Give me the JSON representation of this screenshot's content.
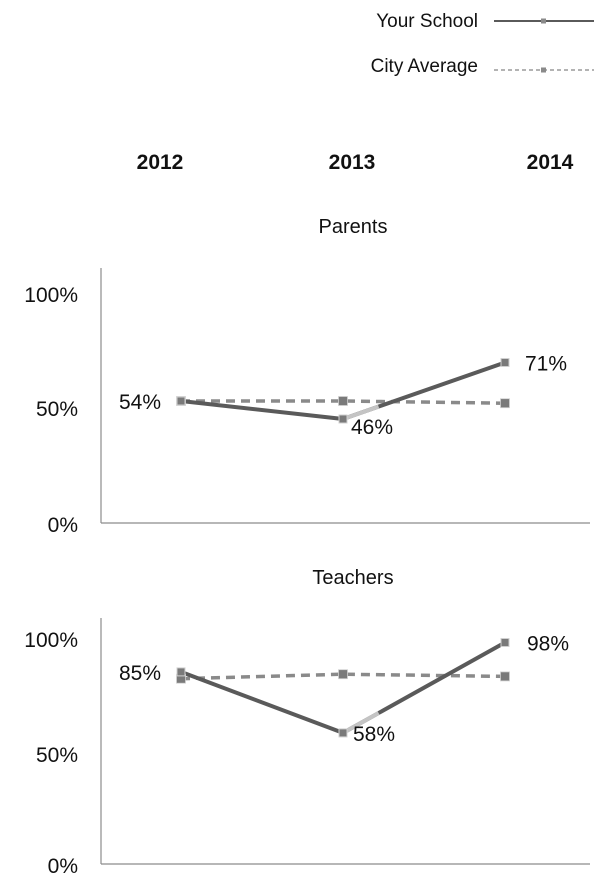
{
  "legend": {
    "items": [
      {
        "label": "Your School",
        "color": "#5a5a5a",
        "style": "solid"
      },
      {
        "label": "City Average",
        "color": "#8a8a8a",
        "style": "dashed"
      }
    ]
  },
  "years": [
    "2012",
    "2013",
    "2014"
  ],
  "colors": {
    "your_school": "#5a5a5a",
    "city_average": "#8a8a8a",
    "highlight_segment": "#c4c4c4",
    "axis": "#8c8c8c",
    "marker": "#7a7a7a",
    "marker_border": "#d0d0d0"
  },
  "chart_data": [
    {
      "type": "line",
      "title": "Parents",
      "x": [
        "2012",
        "2013",
        "2014"
      ],
      "ylim": [
        0,
        100
      ],
      "y_ticks": [
        0,
        50,
        100
      ],
      "y_tick_labels": [
        "0%",
        "50%",
        "100%"
      ],
      "series": [
        {
          "name": "Your School",
          "values": [
            54,
            46,
            71
          ],
          "labels": [
            "54%",
            "46%",
            "71%"
          ]
        },
        {
          "name": "City Average",
          "values": [
            54,
            54,
            53
          ]
        }
      ]
    },
    {
      "type": "line",
      "title": "Teachers",
      "x": [
        "2012",
        "2013",
        "2014"
      ],
      "ylim": [
        0,
        100
      ],
      "y_ticks": [
        0,
        50,
        100
      ],
      "y_tick_labels": [
        "0%",
        "50%",
        "100%"
      ],
      "series": [
        {
          "name": "Your School",
          "values": [
            85,
            58,
            98
          ],
          "labels": [
            "85%",
            "58%",
            "98%"
          ]
        },
        {
          "name": "City Average",
          "values": [
            82,
            84,
            83
          ]
        }
      ]
    }
  ]
}
